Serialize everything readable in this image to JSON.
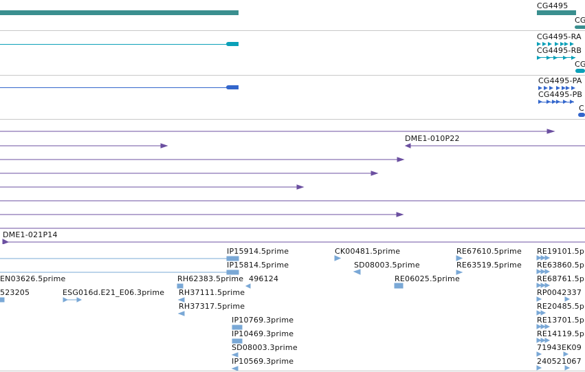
{
  "colors": {
    "gene": "#3a8f8f",
    "transcript": "#0ba0b8",
    "protein": "#3366cc",
    "clone": "#6b4fa0",
    "est": "#7aa8d6",
    "separator": "#c8c8c8"
  },
  "gene_track": {
    "labels": [
      "CG4495",
      "CG"
    ]
  },
  "transcript_track": {
    "labels": [
      "CG4495-RA",
      "CG4495-RB",
      "CG"
    ]
  },
  "protein_track": {
    "labels": [
      "CG4495-PA",
      "CG4495-PB",
      "C"
    ]
  },
  "clone_track": {
    "labels": [
      "DME1-010P22",
      "DME1-021P14"
    ]
  },
  "est_track": {
    "labels": [
      "IP15914.5prime",
      "CK00481.5prime",
      "RE67610.5prime",
      "RE19101.5p",
      "IP15814.5prime",
      "SD08003.5prime",
      "RE63519.5prime",
      "RE63860.5p",
      "EN03626.5prime",
      "RH62383.5prime",
      "496124",
      "RE06025.5prime",
      "RE68761.5p",
      "523205",
      "ESG016d.E21_E06.3prime",
      "RH37111.5prime",
      "RP0042337",
      "RH37317.5prime",
      "RE20485.5p",
      "IP10769.3prime",
      "RE13701.5p",
      "IP10469.3prime",
      "RE14119.5p",
      "SD08003.3prime",
      "71943EK09",
      "IP10569.3prime",
      "240521067"
    ]
  }
}
